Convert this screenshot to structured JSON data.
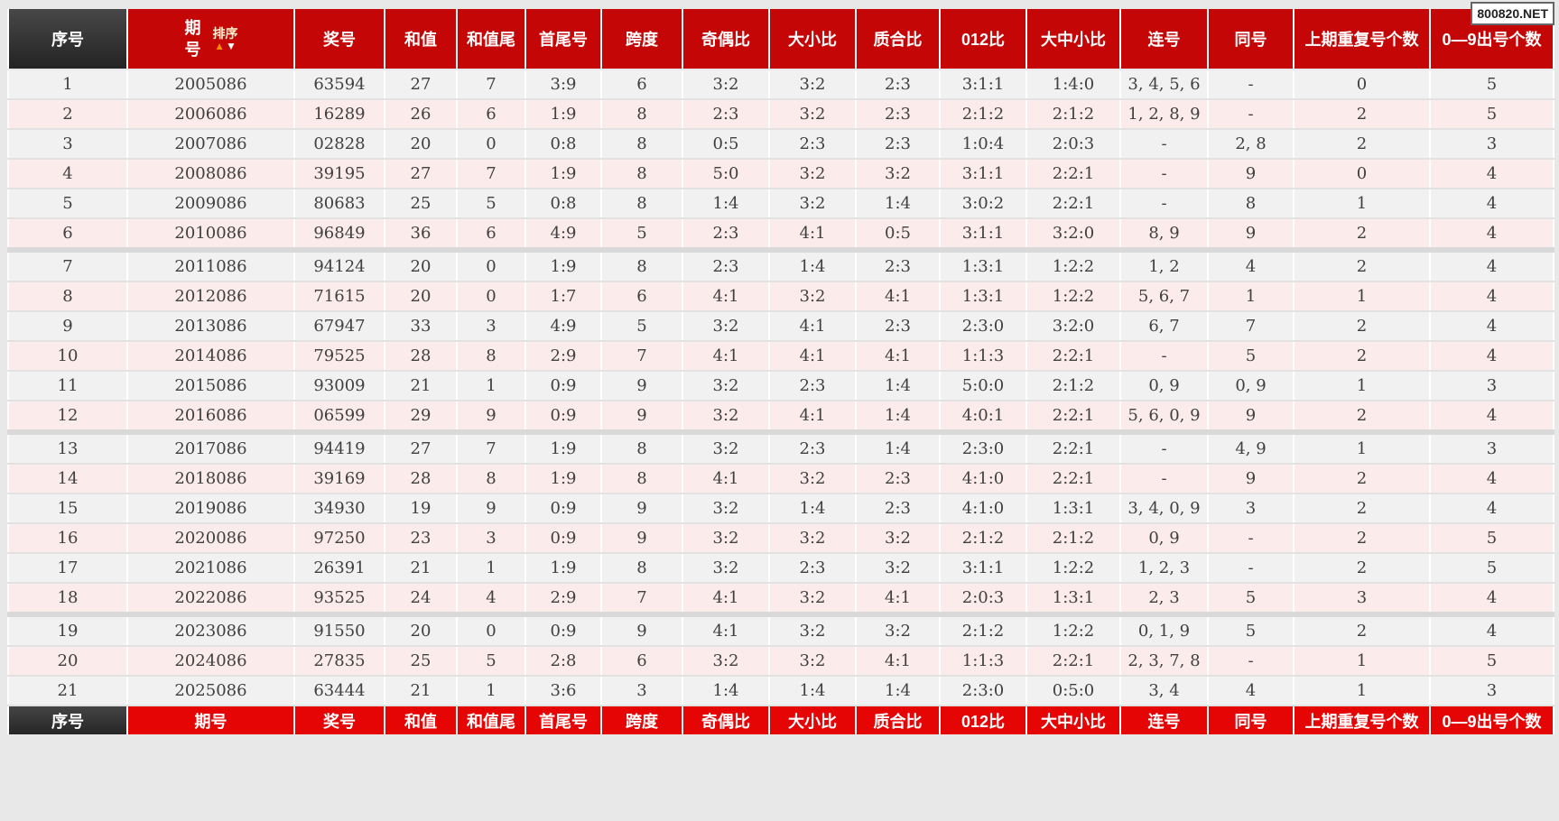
{
  "watermark": "800820.NET",
  "colors": {
    "header_red": "#c40606",
    "footer_red": "#e60505",
    "dark_cell": "#333333",
    "row_gray": "#f1f1f1",
    "row_pink": "#fcebeb",
    "accent_arrow_up": "#ff8a00"
  },
  "table": {
    "header": {
      "seq": "序号",
      "period": "期号",
      "sort_label": "排序",
      "sort_up_icon": "▲",
      "sort_down_icon": "▼",
      "cols": [
        "奖号",
        "和值",
        "和值尾",
        "首尾号",
        "跨度",
        "奇偶比",
        "大小比",
        "质合比",
        "012比",
        "大中小比",
        "连号",
        "同号",
        "上期重复号个数",
        "0—9出号个数"
      ]
    },
    "footer_cols": [
      "序号",
      "期号",
      "奖号",
      "和值",
      "和值尾",
      "首尾号",
      "跨度",
      "奇偶比",
      "大小比",
      "质合比",
      "012比",
      "大中小比",
      "连号",
      "同号",
      "上期重复号个数",
      "0—9出号个数"
    ],
    "rows": [
      [
        "1",
        "2005086",
        "63594",
        "27",
        "7",
        "3:9",
        "6",
        "3:2",
        "3:2",
        "2:3",
        "3:1:1",
        "1:4:0",
        "3, 4, 5, 6",
        "-",
        "0",
        "5"
      ],
      [
        "2",
        "2006086",
        "16289",
        "26",
        "6",
        "1:9",
        "8",
        "2:3",
        "3:2",
        "2:3",
        "2:1:2",
        "2:1:2",
        "1, 2, 8, 9",
        "-",
        "2",
        "5"
      ],
      [
        "3",
        "2007086",
        "02828",
        "20",
        "0",
        "0:8",
        "8",
        "0:5",
        "2:3",
        "2:3",
        "1:0:4",
        "2:0:3",
        "-",
        "2, 8",
        "2",
        "3"
      ],
      [
        "4",
        "2008086",
        "39195",
        "27",
        "7",
        "1:9",
        "8",
        "5:0",
        "3:2",
        "3:2",
        "3:1:1",
        "2:2:1",
        "-",
        "9",
        "0",
        "4"
      ],
      [
        "5",
        "2009086",
        "80683",
        "25",
        "5",
        "0:8",
        "8",
        "1:4",
        "3:2",
        "1:4",
        "3:0:2",
        "2:2:1",
        "-",
        "8",
        "1",
        "4"
      ],
      [
        "6",
        "2010086",
        "96849",
        "36",
        "6",
        "4:9",
        "5",
        "2:3",
        "4:1",
        "0:5",
        "3:1:1",
        "3:2:0",
        "8, 9",
        "9",
        "2",
        "4"
      ],
      [
        "7",
        "2011086",
        "94124",
        "20",
        "0",
        "1:9",
        "8",
        "2:3",
        "1:4",
        "2:3",
        "1:3:1",
        "1:2:2",
        "1, 2",
        "4",
        "2",
        "4"
      ],
      [
        "8",
        "2012086",
        "71615",
        "20",
        "0",
        "1:7",
        "6",
        "4:1",
        "3:2",
        "4:1",
        "1:3:1",
        "1:2:2",
        "5, 6, 7",
        "1",
        "1",
        "4"
      ],
      [
        "9",
        "2013086",
        "67947",
        "33",
        "3",
        "4:9",
        "5",
        "3:2",
        "4:1",
        "2:3",
        "2:3:0",
        "3:2:0",
        "6, 7",
        "7",
        "2",
        "4"
      ],
      [
        "10",
        "2014086",
        "79525",
        "28",
        "8",
        "2:9",
        "7",
        "4:1",
        "4:1",
        "4:1",
        "1:1:3",
        "2:2:1",
        "-",
        "5",
        "2",
        "4"
      ],
      [
        "11",
        "2015086",
        "93009",
        "21",
        "1",
        "0:9",
        "9",
        "3:2",
        "2:3",
        "1:4",
        "5:0:0",
        "2:1:2",
        "0, 9",
        "0, 9",
        "1",
        "3"
      ],
      [
        "12",
        "2016086",
        "06599",
        "29",
        "9",
        "0:9",
        "9",
        "3:2",
        "4:1",
        "1:4",
        "4:0:1",
        "2:2:1",
        "5, 6, 0, 9",
        "9",
        "2",
        "4"
      ],
      [
        "13",
        "2017086",
        "94419",
        "27",
        "7",
        "1:9",
        "8",
        "3:2",
        "2:3",
        "1:4",
        "2:3:0",
        "2:2:1",
        "-",
        "4, 9",
        "1",
        "3"
      ],
      [
        "14",
        "2018086",
        "39169",
        "28",
        "8",
        "1:9",
        "8",
        "4:1",
        "3:2",
        "2:3",
        "4:1:0",
        "2:2:1",
        "-",
        "9",
        "2",
        "4"
      ],
      [
        "15",
        "2019086",
        "34930",
        "19",
        "9",
        "0:9",
        "9",
        "3:2",
        "1:4",
        "2:3",
        "4:1:0",
        "1:3:1",
        "3, 4, 0, 9",
        "3",
        "2",
        "4"
      ],
      [
        "16",
        "2020086",
        "97250",
        "23",
        "3",
        "0:9",
        "9",
        "3:2",
        "3:2",
        "3:2",
        "2:1:2",
        "2:1:2",
        "0, 9",
        "-",
        "2",
        "5"
      ],
      [
        "17",
        "2021086",
        "26391",
        "21",
        "1",
        "1:9",
        "8",
        "3:2",
        "2:3",
        "3:2",
        "3:1:1",
        "1:2:2",
        "1, 2, 3",
        "-",
        "2",
        "5"
      ],
      [
        "18",
        "2022086",
        "93525",
        "24",
        "4",
        "2:9",
        "7",
        "4:1",
        "3:2",
        "4:1",
        "2:0:3",
        "1:3:1",
        "2, 3",
        "5",
        "3",
        "4"
      ],
      [
        "19",
        "2023086",
        "91550",
        "20",
        "0",
        "0:9",
        "9",
        "4:1",
        "3:2",
        "3:2",
        "2:1:2",
        "1:2:2",
        "0, 1, 9",
        "5",
        "2",
        "4"
      ],
      [
        "20",
        "2024086",
        "27835",
        "25",
        "5",
        "2:8",
        "6",
        "3:2",
        "3:2",
        "4:1",
        "1:1:3",
        "2:2:1",
        "2, 3, 7, 8",
        "-",
        "1",
        "5"
      ],
      [
        "21",
        "2025086",
        "63444",
        "21",
        "1",
        "3:6",
        "3",
        "1:4",
        "1:4",
        "1:4",
        "2:3:0",
        "0:5:0",
        "3, 4",
        "4",
        "1",
        "3"
      ]
    ]
  }
}
